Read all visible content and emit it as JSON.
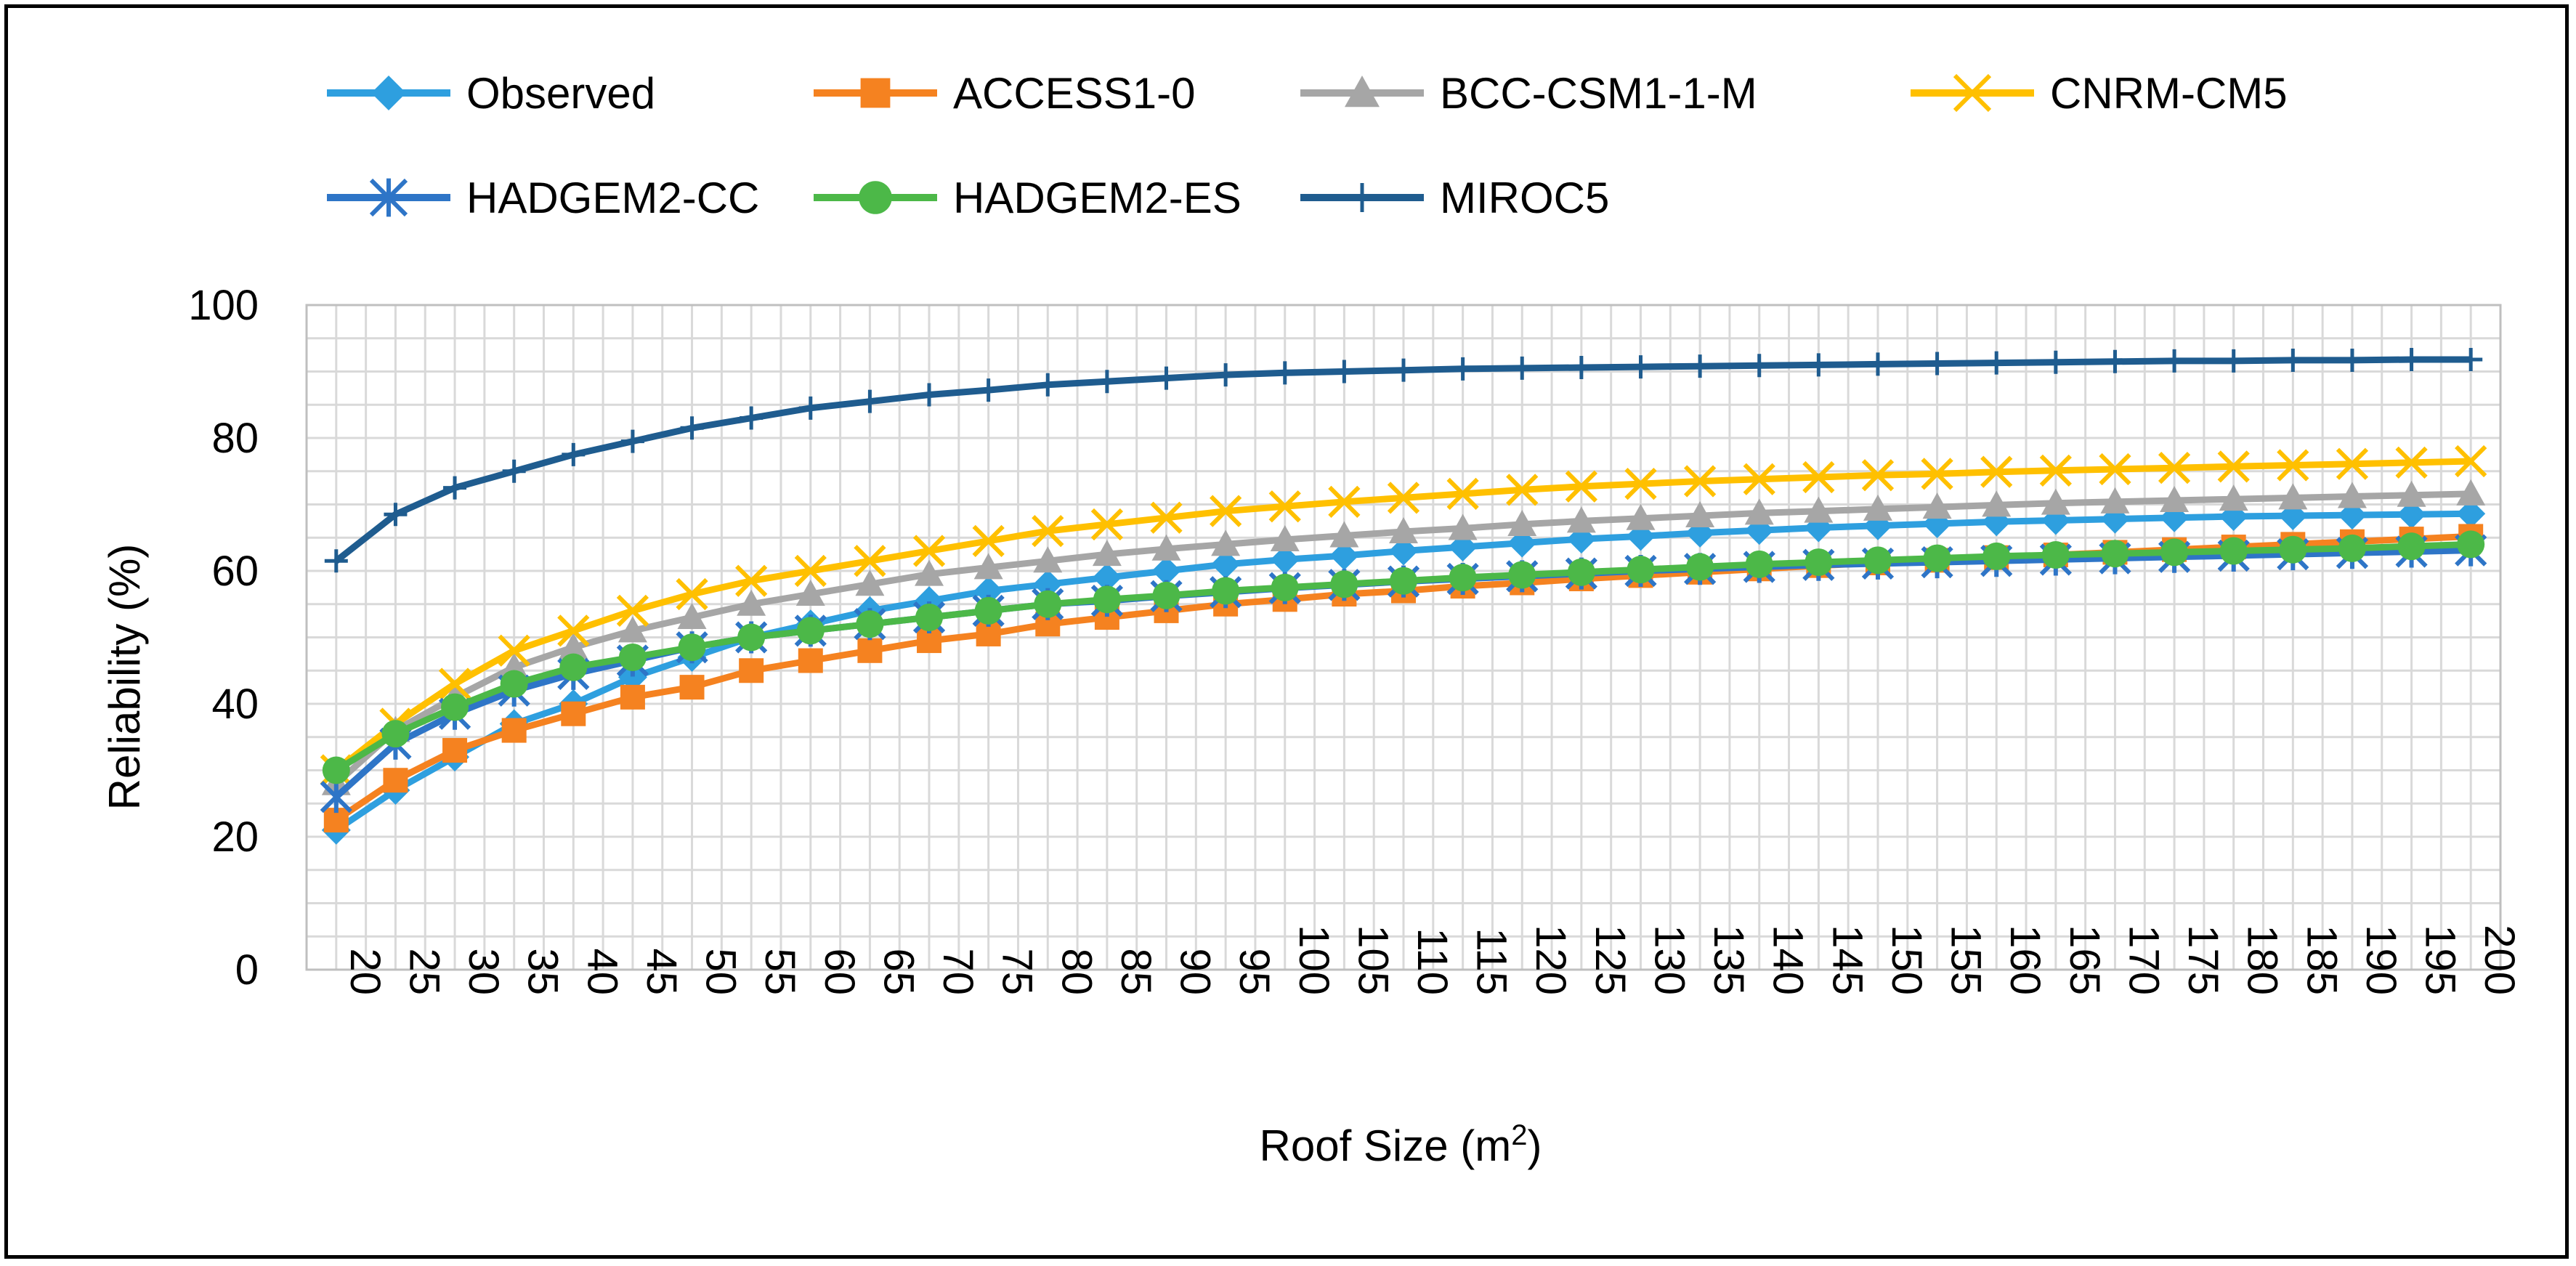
{
  "chart_data": {
    "type": "line",
    "title": "",
    "xlabel": "Roof Size (m",
    "xlabel_sup": "2",
    "xlabel_close": ")",
    "ylabel": "Reliability (%)",
    "ylim": [
      0,
      100
    ],
    "yticks": [
      "0",
      "20",
      "40",
      "60",
      "80",
      "100"
    ],
    "grid": true,
    "legend_position": "top",
    "categories": [
      "20",
      "25",
      "30",
      "35",
      "40",
      "45",
      "50",
      "55",
      "60",
      "65",
      "70",
      "75",
      "80",
      "85",
      "90",
      "95",
      "100",
      "105",
      "110",
      "115",
      "120",
      "125",
      "130",
      "135",
      "140",
      "145",
      "150",
      "155",
      "160",
      "165",
      "170",
      "175",
      "180",
      "185",
      "190",
      "195",
      "200"
    ],
    "series": [
      {
        "name": "Observed",
        "color": "#2e9fdf",
        "marker": "diamond",
        "values": [
          21,
          27,
          32,
          37,
          40,
          44,
          47,
          50,
          52,
          54,
          55.5,
          57,
          58,
          59,
          60,
          61,
          61.7,
          62.3,
          63,
          63.6,
          64.2,
          64.8,
          65.2,
          65.7,
          66.1,
          66.5,
          66.8,
          67.1,
          67.4,
          67.6,
          67.8,
          68,
          68.2,
          68.3,
          68.4,
          68.5,
          68.6
        ]
      },
      {
        "name": "ACCESS1-0",
        "color": "#f58220",
        "marker": "square",
        "values": [
          22.5,
          28.5,
          33,
          36,
          38.5,
          41,
          42.5,
          45,
          46.5,
          48,
          49.5,
          50.5,
          52,
          53,
          54,
          55,
          55.7,
          56.5,
          57,
          57.7,
          58.2,
          58.8,
          59.3,
          59.8,
          60.3,
          60.8,
          61.2,
          61.6,
          62,
          62.4,
          62.8,
          63.2,
          63.6,
          64,
          64.4,
          64.8,
          65.2
        ]
      },
      {
        "name": "BCC-CSM1-1-M",
        "color": "#a6a6a6",
        "marker": "triangle",
        "values": [
          28,
          36,
          41,
          45.5,
          48.5,
          51,
          53,
          55,
          56.5,
          58,
          59.5,
          60.5,
          61.5,
          62.5,
          63.3,
          64,
          64.7,
          65.3,
          65.9,
          66.4,
          67,
          67.5,
          67.9,
          68.3,
          68.7,
          69,
          69.3,
          69.6,
          69.9,
          70.2,
          70.4,
          70.6,
          70.8,
          71,
          71.2,
          71.4,
          71.6
        ]
      },
      {
        "name": "CNRM-CM5",
        "color": "#ffc000",
        "marker": "x",
        "values": [
          30,
          37,
          43,
          48,
          51,
          54,
          56.5,
          58.5,
          60,
          61.5,
          63,
          64.5,
          66,
          67,
          68,
          69,
          69.7,
          70.4,
          71,
          71.6,
          72.2,
          72.7,
          73.1,
          73.5,
          73.8,
          74.1,
          74.4,
          74.6,
          74.9,
          75.1,
          75.3,
          75.5,
          75.7,
          75.9,
          76.1,
          76.3,
          76.5
        ]
      },
      {
        "name": "HADGEM2-CC",
        "color": "#2e75c7",
        "marker": "asterisk",
        "values": [
          26,
          34,
          38.5,
          42,
          44.5,
          46.5,
          48.5,
          50,
          51,
          52,
          53,
          54,
          55,
          55.5,
          56.2,
          56.8,
          57.4,
          57.9,
          58.4,
          58.8,
          59.2,
          59.6,
          60,
          60.3,
          60.6,
          60.9,
          61.1,
          61.3,
          61.5,
          61.7,
          61.9,
          62.1,
          62.3,
          62.5,
          62.7,
          62.9,
          63.1
        ]
      },
      {
        "name": "HADGEM2-ES",
        "color": "#4cb848",
        "marker": "circle",
        "values": [
          30,
          35.5,
          39.5,
          43,
          45.5,
          47,
          48.5,
          50,
          51,
          52,
          53,
          54,
          55,
          55.7,
          56.3,
          57,
          57.5,
          58,
          58.5,
          59,
          59.4,
          59.8,
          60.2,
          60.6,
          61,
          61.3,
          61.6,
          61.9,
          62.2,
          62.4,
          62.6,
          62.8,
          63,
          63.2,
          63.4,
          63.7,
          64
        ]
      },
      {
        "name": "MIROC5",
        "color": "#1f5c8f",
        "marker": "plus",
        "values": [
          61.5,
          68.5,
          72.5,
          75,
          77.5,
          79.5,
          81.5,
          83,
          84.5,
          85.5,
          86.5,
          87.2,
          88,
          88.5,
          89,
          89.5,
          89.8,
          90,
          90.2,
          90.4,
          90.5,
          90.6,
          90.7,
          90.8,
          90.9,
          91,
          91.1,
          91.2,
          91.3,
          91.4,
          91.5,
          91.6,
          91.6,
          91.7,
          91.7,
          91.8,
          91.8
        ]
      }
    ]
  }
}
